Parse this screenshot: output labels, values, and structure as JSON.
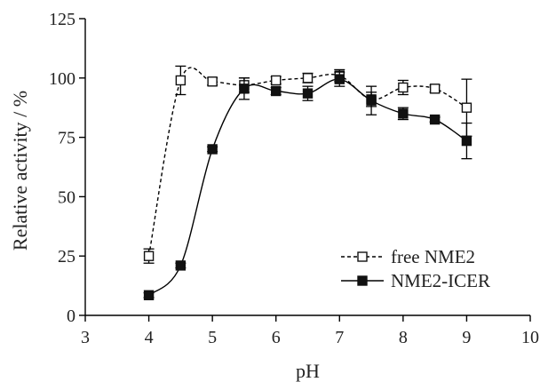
{
  "chart_data": {
    "type": "line",
    "title": "",
    "xlabel": "pH",
    "ylabel": "Relative activity / %",
    "xlim": [
      3,
      10
    ],
    "ylim": [
      0,
      125
    ],
    "xticks": [
      3,
      4,
      5,
      6,
      7,
      8,
      9,
      10
    ],
    "yticks": [
      0,
      25,
      50,
      75,
      100,
      125
    ],
    "grid": false,
    "legend_position": "bottom-right",
    "series": [
      {
        "name": "free NME2",
        "marker": "open-square",
        "line_style": "dashed",
        "color": "#000000",
        "x": [
          4,
          4.5,
          5,
          5.5,
          6,
          6.5,
          7,
          7.5,
          8,
          8.5,
          9
        ],
        "y": [
          25,
          99,
          98.5,
          97,
          99,
          100,
          101,
          91,
          96,
          95.5,
          87.5
        ],
        "error": [
          3,
          6,
          1.5,
          3,
          1.5,
          2,
          2.5,
          3,
          3,
          1.5,
          12
        ]
      },
      {
        "name": "NME2-ICER",
        "marker": "filled-square",
        "line_style": "solid",
        "color": "#000000",
        "x": [
          4,
          4.5,
          5,
          5.5,
          6,
          6.5,
          7,
          7.5,
          8,
          8.5,
          9
        ],
        "y": [
          8.5,
          21,
          70,
          95.5,
          94.5,
          93.5,
          99.5,
          90.5,
          85,
          82.5,
          73.5
        ],
        "error": [
          1,
          1,
          1,
          4.5,
          1.5,
          3,
          3,
          6,
          2.5,
          1,
          7.5
        ]
      }
    ]
  }
}
